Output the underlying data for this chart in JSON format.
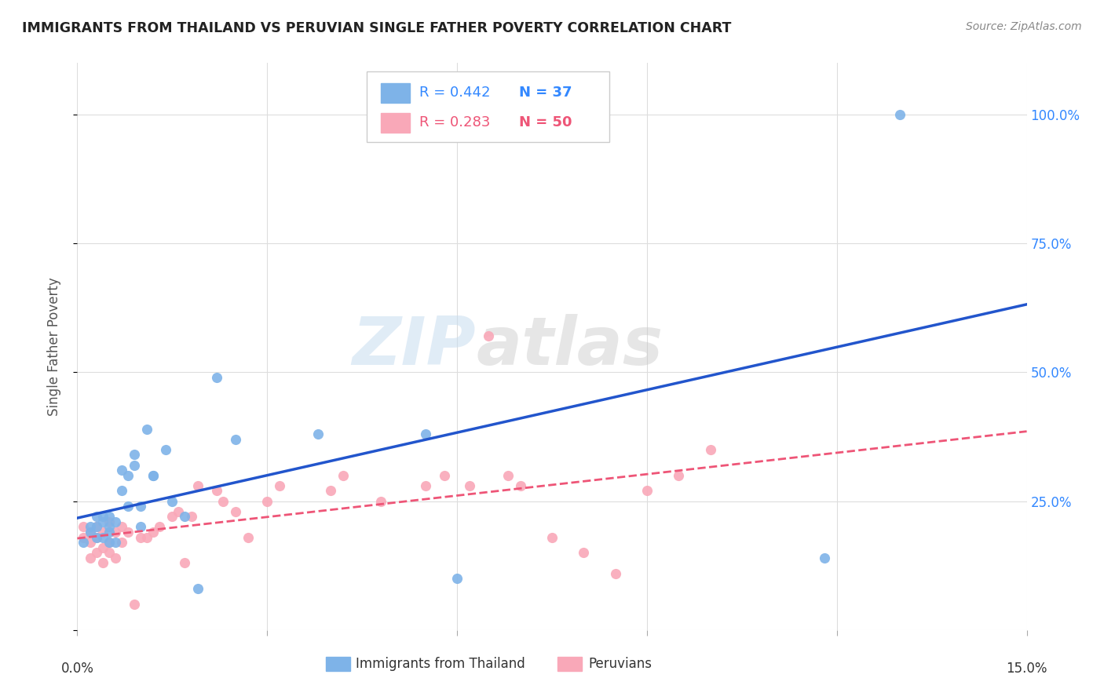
{
  "title": "IMMIGRANTS FROM THAILAND VS PERUVIAN SINGLE FATHER POVERTY CORRELATION CHART",
  "source": "Source: ZipAtlas.com",
  "ylabel": "Single Father Poverty",
  "xlim": [
    0.0,
    0.15
  ],
  "ylim": [
    0.0,
    1.1
  ],
  "legend_R1": "R = 0.442",
  "legend_N1": "N = 37",
  "legend_R2": "R = 0.283",
  "legend_N2": "N = 50",
  "color_thailand": "#7EB3E8",
  "color_peruvian": "#F9A8B8",
  "color_trend_thailand": "#2255CC",
  "color_trend_peruvian": "#EE5577",
  "watermark_zip": "ZIP",
  "watermark_atlas": "atlas",
  "thailand_x": [
    0.001,
    0.002,
    0.002,
    0.003,
    0.003,
    0.003,
    0.004,
    0.004,
    0.004,
    0.005,
    0.005,
    0.005,
    0.005,
    0.006,
    0.006,
    0.007,
    0.007,
    0.008,
    0.008,
    0.009,
    0.009,
    0.01,
    0.01,
    0.011,
    0.012,
    0.012,
    0.014,
    0.015,
    0.017,
    0.019,
    0.022,
    0.025,
    0.038,
    0.055,
    0.06,
    0.118,
    0.13
  ],
  "thailand_y": [
    0.17,
    0.19,
    0.2,
    0.18,
    0.2,
    0.22,
    0.18,
    0.21,
    0.22,
    0.17,
    0.19,
    0.2,
    0.22,
    0.17,
    0.21,
    0.27,
    0.31,
    0.24,
    0.3,
    0.32,
    0.34,
    0.2,
    0.24,
    0.39,
    0.3,
    0.3,
    0.35,
    0.25,
    0.22,
    0.08,
    0.49,
    0.37,
    0.38,
    0.38,
    0.1,
    0.14,
    1.0
  ],
  "peruvian_x": [
    0.001,
    0.001,
    0.002,
    0.002,
    0.002,
    0.003,
    0.003,
    0.003,
    0.004,
    0.004,
    0.004,
    0.005,
    0.005,
    0.005,
    0.006,
    0.006,
    0.007,
    0.007,
    0.008,
    0.009,
    0.01,
    0.011,
    0.012,
    0.013,
    0.015,
    0.016,
    0.017,
    0.018,
    0.019,
    0.022,
    0.023,
    0.025,
    0.027,
    0.03,
    0.032,
    0.04,
    0.042,
    0.048,
    0.055,
    0.058,
    0.062,
    0.065,
    0.068,
    0.07,
    0.075,
    0.08,
    0.085,
    0.09,
    0.095,
    0.1
  ],
  "peruvian_y": [
    0.18,
    0.2,
    0.14,
    0.17,
    0.19,
    0.15,
    0.18,
    0.2,
    0.13,
    0.16,
    0.19,
    0.15,
    0.17,
    0.21,
    0.14,
    0.19,
    0.17,
    0.2,
    0.19,
    0.05,
    0.18,
    0.18,
    0.19,
    0.2,
    0.22,
    0.23,
    0.13,
    0.22,
    0.28,
    0.27,
    0.25,
    0.23,
    0.18,
    0.25,
    0.28,
    0.27,
    0.3,
    0.25,
    0.28,
    0.3,
    0.28,
    0.57,
    0.3,
    0.28,
    0.18,
    0.15,
    0.11,
    0.27,
    0.3,
    0.35
  ]
}
